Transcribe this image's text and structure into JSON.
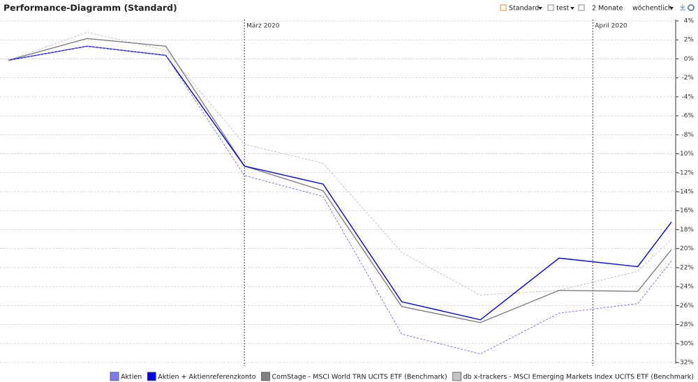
{
  "toolbar": {
    "items": [
      "Standard",
      "test",
      "2 Monate",
      "wöchentlich"
    ]
  },
  "chart_data": {
    "type": "line",
    "title": "Performance-Diagramm (Standard)",
    "x": [
      40,
      47,
      54,
      61,
      68,
      75,
      82,
      89,
      96,
      99
    ],
    "xlim": [
      39.5,
      99.5
    ],
    "xticks": [
      {
        "value": 61,
        "label": "März 2020"
      },
      {
        "value": 92,
        "label": "April 2020"
      }
    ],
    "ylim": [
      -32,
      4
    ],
    "yticks": [
      {
        "value": 4,
        "label": "4%"
      },
      {
        "value": 2,
        "label": "2%"
      },
      {
        "value": 0,
        "label": "0%"
      },
      {
        "value": -2,
        "label": "-2%"
      },
      {
        "value": -4,
        "label": "-4%"
      },
      {
        "value": -6,
        "label": "-6%"
      },
      {
        "value": -8,
        "label": "-8%"
      },
      {
        "value": -10,
        "label": "-10%"
      },
      {
        "value": -12,
        "label": "-12%"
      },
      {
        "value": -14,
        "label": "-14%"
      },
      {
        "value": -16,
        "label": "-16%"
      },
      {
        "value": -18,
        "label": "-18%"
      },
      {
        "value": -20,
        "label": "-20%"
      },
      {
        "value": -22,
        "label": "-22%"
      },
      {
        "value": -24,
        "label": "-24%"
      },
      {
        "value": -26,
        "label": "-26%"
      },
      {
        "value": -28,
        "label": "-28%"
      },
      {
        "value": -30,
        "label": "-30%"
      },
      {
        "value": -32,
        "label": "-32%"
      }
    ],
    "grid": true,
    "legend": "bottom",
    "series": [
      {
        "name": "Aktien",
        "color": "#7b7bf5",
        "dashed": true,
        "values": [
          -0.15,
          1.33,
          0.37,
          -12.3,
          -14.5,
          -29.0,
          -31.1,
          -26.8,
          -25.8,
          -21.3
        ]
      },
      {
        "name": "Aktien + Aktienreferenzkonto",
        "color": "#0000ee",
        "dashed": false,
        "values": [
          -0.15,
          1.33,
          0.37,
          -11.3,
          -13.2,
          -25.6,
          -27.5,
          -21.0,
          -21.9,
          -17.2
        ]
      },
      {
        "name": "ComStage - MSCI World TRN UCITS ETF (Benchmark)",
        "color": "#808080",
        "dashed": false,
        "values": [
          -0.15,
          2.15,
          1.33,
          -11.3,
          -13.9,
          -26.1,
          -27.8,
          -24.4,
          -24.5,
          -20.1
        ]
      },
      {
        "name": "db x-trackers - MSCI Emerging Markets Index UCITS ETF (Benchmark)",
        "color": "#c4c4c4",
        "dashed": true,
        "values": [
          -0.15,
          2.8,
          0.9,
          -9.0,
          -11.0,
          -20.4,
          -24.9,
          -24.4,
          -22.4,
          -19.0
        ]
      }
    ]
  }
}
